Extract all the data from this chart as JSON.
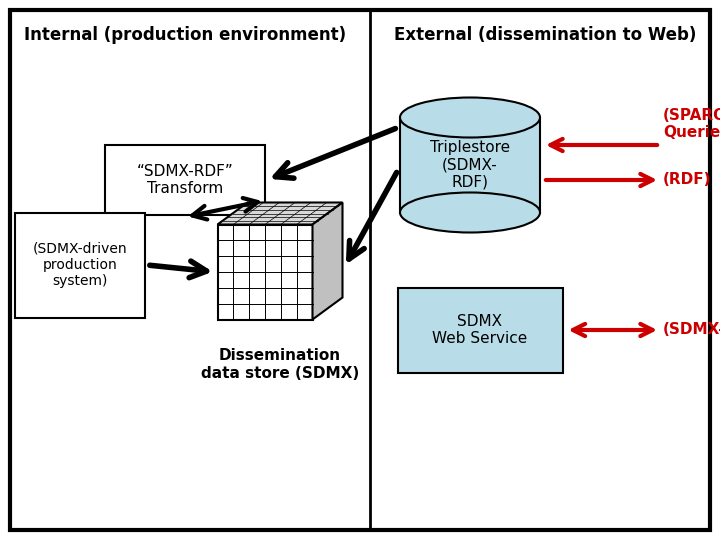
{
  "bg_color": "#ffffff",
  "border_color": "#000000",
  "fig_w": 7.2,
  "fig_h": 5.4,
  "dpi": 100,
  "internal_label": "Internal (production environment)",
  "external_label": "External (dissemination to Web)",
  "sdmx_rdf_label": "“SDMX-RDF”\nTransform",
  "sdmx_driven_label": "(SDMX-driven\nproduction\nsystem)",
  "dissemination_label": "Dissemination\ndata store (SDMX)",
  "triplestore_label": "Triplestore\n(SDMX-\nRDF)",
  "triplestore_color": "#b8dce8",
  "webservice_label": "SDMX\nWeb Service",
  "webservice_color": "#b8dce8",
  "sparql_label": "(SPARQL\nQueries)",
  "rdf_label": "(RDF)",
  "sdmxml_label": "(SDMX-ML)",
  "red_color": "#cc0000",
  "black_color": "#000000"
}
